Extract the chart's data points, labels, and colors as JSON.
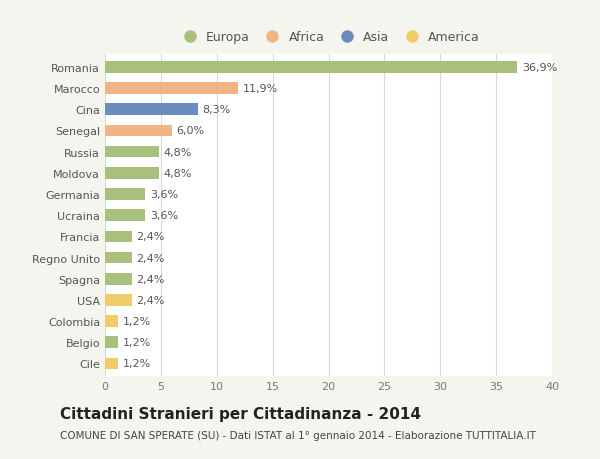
{
  "categories": [
    "Romania",
    "Marocco",
    "Cina",
    "Senegal",
    "Russia",
    "Moldova",
    "Germania",
    "Ucraina",
    "Francia",
    "Regno Unito",
    "Spagna",
    "USA",
    "Colombia",
    "Belgio",
    "Cile"
  ],
  "values": [
    36.9,
    11.9,
    8.3,
    6.0,
    4.8,
    4.8,
    3.6,
    3.6,
    2.4,
    2.4,
    2.4,
    2.4,
    1.2,
    1.2,
    1.2
  ],
  "labels": [
    "36,9%",
    "11,9%",
    "8,3%",
    "6,0%",
    "4,8%",
    "4,8%",
    "3,6%",
    "3,6%",
    "2,4%",
    "2,4%",
    "2,4%",
    "2,4%",
    "1,2%",
    "1,2%",
    "1,2%"
  ],
  "continents": [
    "Europa",
    "Africa",
    "Asia",
    "Africa",
    "Europa",
    "Europa",
    "Europa",
    "Europa",
    "Europa",
    "Europa",
    "Europa",
    "America",
    "America",
    "Europa",
    "America"
  ],
  "colors": {
    "Europa": "#a8c07c",
    "Africa": "#f0b485",
    "Asia": "#6b8cbf",
    "America": "#f0cc6a"
  },
  "title": "Cittadini Stranieri per Cittadinanza - 2014",
  "subtitle": "COMUNE DI SAN SPERATE (SU) - Dati ISTAT al 1° gennaio 2014 - Elaborazione TUTTITALIA.IT",
  "xlim": [
    0,
    40
  ],
  "xticks": [
    0,
    5,
    10,
    15,
    20,
    25,
    30,
    35,
    40
  ],
  "background_color": "#f5f5f0",
  "plot_background": "#ffffff",
  "grid_color": "#d8d8d8",
  "bar_height": 0.55,
  "title_fontsize": 11,
  "subtitle_fontsize": 7.5,
  "label_fontsize": 8,
  "tick_fontsize": 8,
  "legend_fontsize": 9
}
